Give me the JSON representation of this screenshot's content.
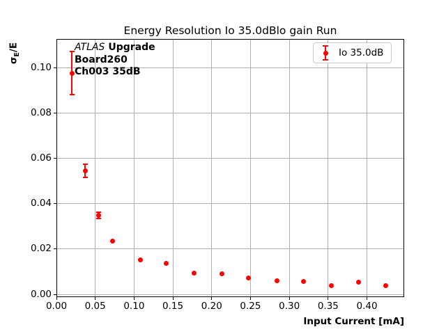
{
  "chart_data": {
    "type": "scatter",
    "title": "Energy Resolution Io 35.0dBlo gain Run",
    "xlabel": "Input Current [mA]",
    "ylabel": "σE/E",
    "ylabel_parts": {
      "symbol": "σ",
      "subscript": "E",
      "rest": "/E"
    },
    "xlim": [
      0,
      0.448
    ],
    "ylim": [
      -0.0012,
      0.1126
    ],
    "xticks": [
      0,
      0.05,
      0.1,
      0.15,
      0.2,
      0.25,
      0.3,
      0.35,
      0.4
    ],
    "yticks": [
      0,
      0.02,
      0.04,
      0.06,
      0.08,
      0.1
    ],
    "grid": true,
    "grid_color": "#b0b0b0",
    "legend": {
      "label": "Io 35.0dB",
      "position": "upper right"
    },
    "annotation": {
      "line1_italic": "ATLAS",
      "line1_bold": "Upgrade",
      "line2": "Board260",
      "line3": "Ch003 35dB"
    },
    "series": [
      {
        "name": "Io 35.0dB",
        "color": "#ff0000",
        "marker": "circle-with-errorbar",
        "points": [
          {
            "x": 0.02,
            "y": 0.0975,
            "yerr": 0.0095
          },
          {
            "x": 0.037,
            "y": 0.0545,
            "yerr": 0.0029
          },
          {
            "x": 0.054,
            "y": 0.0349,
            "yerr": 0.0013
          },
          {
            "x": 0.072,
            "y": 0.0236,
            "yerr": 0
          },
          {
            "x": 0.108,
            "y": 0.0152,
            "yerr": 0
          },
          {
            "x": 0.141,
            "y": 0.0138,
            "yerr": 0
          },
          {
            "x": 0.177,
            "y": 0.0094,
            "yerr": 0
          },
          {
            "x": 0.213,
            "y": 0.009,
            "yerr": 0
          },
          {
            "x": 0.247,
            "y": 0.0071,
            "yerr": 0
          },
          {
            "x": 0.284,
            "y": 0.006,
            "yerr": 0
          },
          {
            "x": 0.318,
            "y": 0.0057,
            "yerr": 0
          },
          {
            "x": 0.354,
            "y": 0.004,
            "yerr": 0
          },
          {
            "x": 0.389,
            "y": 0.0053,
            "yerr": 0
          },
          {
            "x": 0.424,
            "y": 0.0039,
            "yerr": 0
          }
        ]
      }
    ]
  }
}
